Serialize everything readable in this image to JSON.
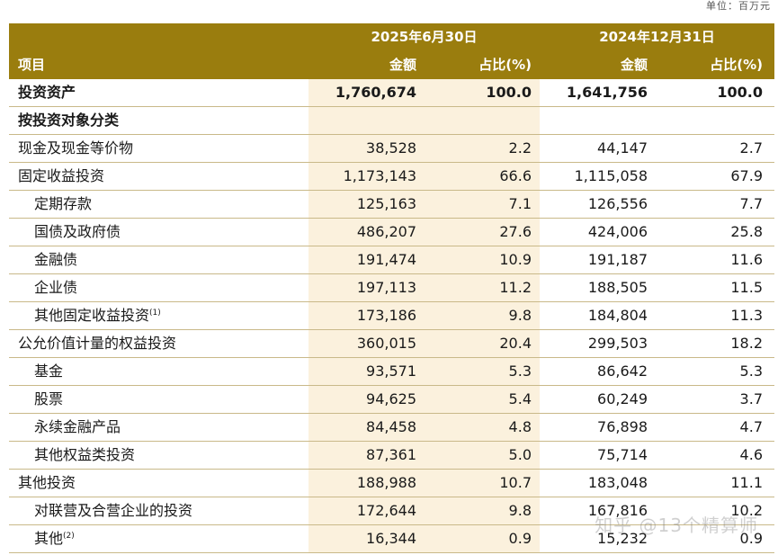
{
  "unit_label": "单位：百万元",
  "header": {
    "period1": "2025年6月30日",
    "period2": "2024年12月31日",
    "col_item": "项目",
    "col_amount": "金额",
    "col_ratio": "占比(%)"
  },
  "rows": [
    {
      "label": "投资资产",
      "amount1": "1,760,674",
      "ratio1": "100.0",
      "amount2": "1,641,756",
      "ratio2": "100.0",
      "bold": true,
      "indent": false,
      "note": ""
    },
    {
      "label": "按投资对象分类",
      "amount1": "",
      "ratio1": "",
      "amount2": "",
      "ratio2": "",
      "bold": true,
      "indent": false,
      "note": ""
    },
    {
      "label": "现金及现金等价物",
      "amount1": "38,528",
      "ratio1": "2.2",
      "amount2": "44,147",
      "ratio2": "2.7",
      "bold": false,
      "indent": false,
      "note": ""
    },
    {
      "label": "固定收益投资",
      "amount1": "1,173,143",
      "ratio1": "66.6",
      "amount2": "1,115,058",
      "ratio2": "67.9",
      "bold": false,
      "indent": false,
      "note": ""
    },
    {
      "label": "定期存款",
      "amount1": "125,163",
      "ratio1": "7.1",
      "amount2": "126,556",
      "ratio2": "7.7",
      "bold": false,
      "indent": true,
      "note": ""
    },
    {
      "label": "国债及政府债",
      "amount1": "486,207",
      "ratio1": "27.6",
      "amount2": "424,006",
      "ratio2": "25.8",
      "bold": false,
      "indent": true,
      "note": ""
    },
    {
      "label": "金融债",
      "amount1": "191,474",
      "ratio1": "10.9",
      "amount2": "191,187",
      "ratio2": "11.6",
      "bold": false,
      "indent": true,
      "note": ""
    },
    {
      "label": "企业债",
      "amount1": "197,113",
      "ratio1": "11.2",
      "amount2": "188,505",
      "ratio2": "11.5",
      "bold": false,
      "indent": true,
      "note": ""
    },
    {
      "label": "其他固定收益投资",
      "amount1": "173,186",
      "ratio1": "9.8",
      "amount2": "184,804",
      "ratio2": "11.3",
      "bold": false,
      "indent": true,
      "note": "(1)"
    },
    {
      "label": "公允价值计量的权益投资",
      "amount1": "360,015",
      "ratio1": "20.4",
      "amount2": "299,503",
      "ratio2": "18.2",
      "bold": false,
      "indent": false,
      "note": ""
    },
    {
      "label": "基金",
      "amount1": "93,571",
      "ratio1": "5.3",
      "amount2": "86,642",
      "ratio2": "5.3",
      "bold": false,
      "indent": true,
      "note": ""
    },
    {
      "label": "股票",
      "amount1": "94,625",
      "ratio1": "5.4",
      "amount2": "60,249",
      "ratio2": "3.7",
      "bold": false,
      "indent": true,
      "note": ""
    },
    {
      "label": "永续金融产品",
      "amount1": "84,458",
      "ratio1": "4.8",
      "amount2": "76,898",
      "ratio2": "4.7",
      "bold": false,
      "indent": true,
      "note": ""
    },
    {
      "label": "其他权益类投资",
      "amount1": "87,361",
      "ratio1": "5.0",
      "amount2": "75,714",
      "ratio2": "4.6",
      "bold": false,
      "indent": true,
      "note": ""
    },
    {
      "label": "其他投资",
      "amount1": "188,988",
      "ratio1": "10.7",
      "amount2": "183,048",
      "ratio2": "11.1",
      "bold": false,
      "indent": false,
      "note": ""
    },
    {
      "label": "对联营及合营企业的投资",
      "amount1": "172,644",
      "ratio1": "9.8",
      "amount2": "167,816",
      "ratio2": "10.2",
      "bold": false,
      "indent": true,
      "note": ""
    },
    {
      "label": "其他",
      "amount1": "16,344",
      "ratio1": "0.9",
      "amount2": "15,232",
      "ratio2": "0.9",
      "bold": false,
      "indent": true,
      "note": "(2)"
    }
  ],
  "watermark": "知乎 @13个精算师"
}
